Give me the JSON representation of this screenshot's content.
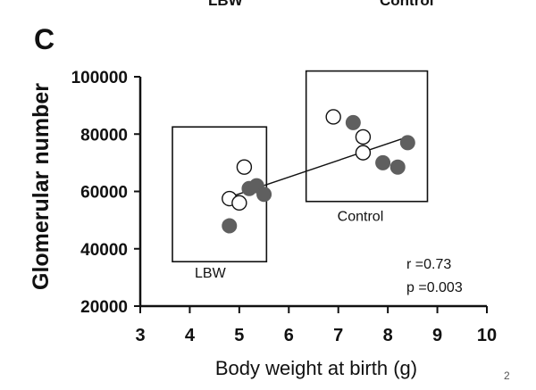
{
  "top_partial_labels": [
    "LBW",
    "Control"
  ],
  "panel_label": "C",
  "page_number": "2",
  "chart_data": {
    "type": "scatter",
    "title": "",
    "xlabel": "Body weight at birth (g)",
    "ylabel": "Glomerular number",
    "xlim": [
      3,
      10
    ],
    "ylim": [
      20000,
      100000
    ],
    "x_ticks": [
      "3",
      "4",
      "5",
      "6",
      "7",
      "8",
      "9",
      "10"
    ],
    "y_ticks": [
      "20000",
      "40000",
      "60000",
      "80000",
      "100000"
    ],
    "grid": false,
    "series": [
      {
        "marker": "open-circle",
        "points": [
          {
            "x": 4.8,
            "y": 57500
          },
          {
            "x": 5.0,
            "y": 56000
          },
          {
            "x": 5.1,
            "y": 68500
          },
          {
            "x": 6.9,
            "y": 86000
          },
          {
            "x": 7.5,
            "y": 79000
          },
          {
            "x": 7.5,
            "y": 73500
          }
        ]
      },
      {
        "marker": "filled-circle",
        "points": [
          {
            "x": 4.8,
            "y": 48000
          },
          {
            "x": 5.2,
            "y": 61000
          },
          {
            "x": 5.35,
            "y": 62000
          },
          {
            "x": 5.5,
            "y": 59000
          },
          {
            "x": 7.3,
            "y": 84000
          },
          {
            "x": 7.9,
            "y": 70000
          },
          {
            "x": 8.2,
            "y": 68500
          },
          {
            "x": 8.4,
            "y": 77000
          }
        ]
      }
    ],
    "trendline": {
      "x": [
        4.8,
        8.4
      ],
      "y": [
        58000,
        79000
      ]
    },
    "group_boxes": [
      {
        "label": "LBW",
        "x": [
          3.65,
          5.55
        ],
        "y": [
          35500,
          82500
        ]
      },
      {
        "label": "Control",
        "x": [
          6.35,
          8.8
        ],
        "y": [
          56500,
          102000
        ]
      }
    ],
    "annotations": {
      "r": "r =0.73",
      "p": "p =0.003"
    },
    "colors": {
      "filled_marker": "#5f5f5f",
      "open_marker_fill": "#ffffff",
      "ink": "#111111"
    }
  }
}
